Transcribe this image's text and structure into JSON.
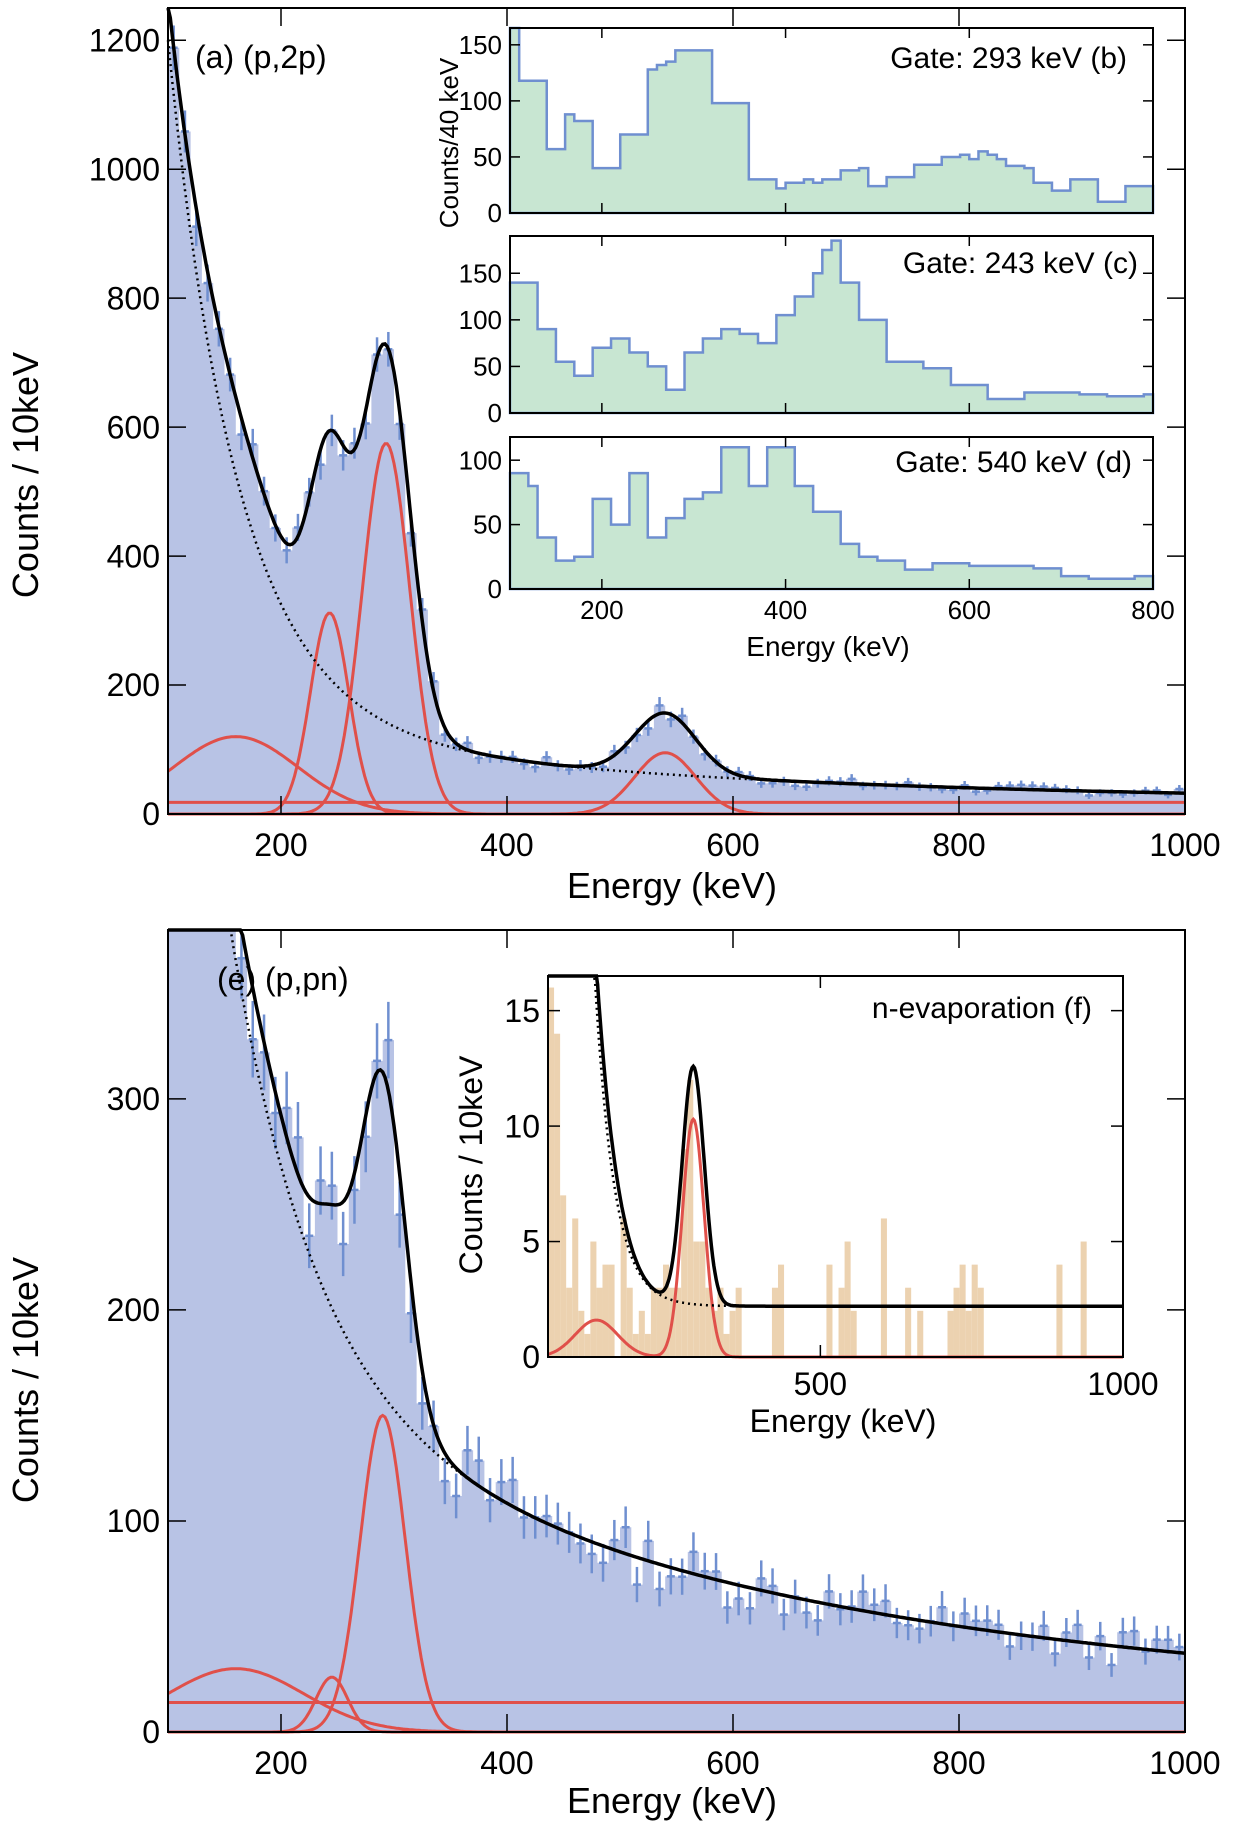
{
  "colors": {
    "hist_fill": "#b4c0e4",
    "hist_line": "#6f8fd0",
    "inset_fill": "#c8e6d2",
    "peak": "#e0504a",
    "total": "#000000",
    "evap_fill": "#ecd2b0"
  },
  "chart_data": [
    {
      "id": "a",
      "type": "histogram-fit",
      "panel_label": "(a) (p,2p)",
      "xlabel": "Energy (keV)",
      "ylabel": "Counts / 10keV",
      "xlim": [
        100,
        1000
      ],
      "ylim": [
        0,
        1250
      ],
      "xticks": [
        200,
        400,
        600,
        800,
        1000
      ],
      "yticks": [
        0,
        200,
        400,
        600,
        800,
        1000,
        1200
      ],
      "background": {
        "a": 18,
        "b": 1060,
        "tau": 62,
        "c": 122,
        "lambda": 420
      },
      "peaks": [
        {
          "center": 293,
          "height": 575,
          "sigma": 21
        },
        {
          "center": 243,
          "height": 312,
          "sigma": 17
        },
        {
          "center": 540,
          "height": 95,
          "sigma": 27
        },
        {
          "center": 160,
          "height": 120,
          "sigma": 55
        }
      ]
    },
    {
      "id": "b",
      "type": "histogram",
      "label": "Gate: 293 keV (b)",
      "ylabel": "Counts/40 keV",
      "xlim": [
        100,
        800
      ],
      "ylim": [
        0,
        165
      ],
      "yticks": [
        0,
        50,
        100,
        150
      ],
      "xticks": [
        200,
        400,
        600,
        800
      ],
      "bin_width": 10,
      "values": [
        165,
        118,
        118,
        118,
        57,
        57,
        88,
        82,
        82,
        40,
        40,
        40,
        70,
        70,
        70,
        128,
        132,
        135,
        145,
        145,
        145,
        145,
        98,
        98,
        98,
        98,
        30,
        30,
        30,
        22,
        27,
        27,
        30,
        27,
        30,
        30,
        38,
        38,
        40,
        24,
        24,
        32,
        32,
        32,
        43,
        43,
        43,
        50,
        50,
        52,
        48,
        55,
        52,
        48,
        42,
        42,
        40,
        27,
        27,
        20,
        20,
        30,
        30,
        30,
        10,
        10,
        10,
        24,
        24,
        24
      ]
    },
    {
      "id": "c",
      "type": "histogram",
      "label": "Gate: 243 keV (c)",
      "xlim": [
        100,
        800
      ],
      "ylim": [
        0,
        190
      ],
      "yticks": [
        0,
        50,
        100,
        150
      ],
      "xticks": [
        200,
        400,
        600,
        800
      ],
      "bin_width": 10,
      "values": [
        140,
        140,
        140,
        90,
        90,
        55,
        55,
        40,
        40,
        70,
        70,
        80,
        80,
        65,
        65,
        50,
        50,
        25,
        25,
        65,
        65,
        80,
        80,
        90,
        90,
        85,
        85,
        75,
        75,
        105,
        105,
        125,
        125,
        150,
        175,
        185,
        140,
        140,
        100,
        100,
        100,
        55,
        55,
        55,
        55,
        48,
        48,
        48,
        30,
        30,
        30,
        30,
        15,
        15,
        15,
        15,
        22,
        22,
        22,
        22,
        22,
        22,
        20,
        20,
        20,
        18,
        18,
        18,
        18,
        20
      ]
    },
    {
      "id": "d",
      "type": "histogram",
      "label": "Gate: 540 keV (d)",
      "xlim": [
        100,
        800
      ],
      "ylim": [
        0,
        118
      ],
      "yticks": [
        0,
        50,
        100
      ],
      "xticks": [
        200,
        400,
        600,
        800
      ],
      "bin_width": 10,
      "values": [
        90,
        90,
        80,
        40,
        40,
        22,
        22,
        25,
        25,
        70,
        70,
        50,
        50,
        90,
        90,
        40,
        40,
        55,
        55,
        70,
        70,
        75,
        75,
        110,
        110,
        110,
        80,
        80,
        110,
        110,
        110,
        80,
        80,
        60,
        60,
        60,
        35,
        35,
        25,
        25,
        22,
        22,
        22,
        15,
        15,
        15,
        20,
        20,
        20,
        20,
        18,
        18,
        18,
        18,
        18,
        18,
        18,
        16,
        16,
        16,
        10,
        10,
        10,
        8,
        8,
        8,
        8,
        8,
        10,
        10
      ]
    },
    {
      "id": "e",
      "type": "histogram-fit",
      "panel_label": "(e) (p,pn)",
      "xlabel": "Energy (keV)",
      "ylabel": "Counts / 10keV",
      "xlim": [
        100,
        1000
      ],
      "ylim": [
        0,
        380
      ],
      "xticks": [
        200,
        400,
        600,
        800,
        1000
      ],
      "yticks": [
        0,
        100,
        200,
        300
      ],
      "background": {
        "a": 14,
        "b": 460,
        "tau": 75,
        "c": 165,
        "lambda": 460
      },
      "peaks": [
        {
          "center": 290,
          "height": 150,
          "sigma": 20
        },
        {
          "center": 245,
          "height": 26,
          "sigma": 14
        },
        {
          "center": 160,
          "height": 30,
          "sigma": 60
        }
      ]
    },
    {
      "id": "f",
      "type": "histogram-fit",
      "label": "n-evaporation (f)",
      "xlabel": "Energy (keV)",
      "ylabel": "Counts / 10keV",
      "xlim": [
        50,
        1000
      ],
      "ylim": [
        0,
        16.5
      ],
      "xticks": [
        500,
        1000
      ],
      "yticks": [
        0,
        5,
        10,
        15
      ],
      "background": {
        "a": 2.2,
        "b": 160,
        "tau": 32
      },
      "peaks": [
        {
          "center": 290,
          "height": 10.3,
          "sigma": 18
        },
        {
          "center": 130,
          "height": 1.6,
          "sigma": 35
        }
      ],
      "bars": [
        [
          55,
          16
        ],
        [
          65,
          14
        ],
        [
          75,
          7
        ],
        [
          85,
          3
        ],
        [
          95,
          6
        ],
        [
          105,
          2
        ],
        [
          115,
          1
        ],
        [
          125,
          5
        ],
        [
          135,
          3
        ],
        [
          145,
          4
        ],
        [
          155,
          4
        ],
        [
          175,
          6
        ],
        [
          185,
          3
        ],
        [
          195,
          1
        ],
        [
          205,
          2
        ],
        [
          215,
          1
        ],
        [
          225,
          3
        ],
        [
          235,
          3
        ],
        [
          245,
          4
        ],
        [
          255,
          3
        ],
        [
          265,
          3
        ],
        [
          275,
          9
        ],
        [
          285,
          12
        ],
        [
          295,
          5
        ],
        [
          305,
          5
        ],
        [
          315,
          3
        ],
        [
          325,
          2
        ],
        [
          335,
          3
        ],
        [
          345,
          1
        ],
        [
          355,
          2
        ],
        [
          365,
          3
        ],
        [
          425,
          3
        ],
        [
          435,
          4
        ],
        [
          515,
          4
        ],
        [
          535,
          3
        ],
        [
          545,
          5
        ],
        [
          555,
          2
        ],
        [
          605,
          6
        ],
        [
          645,
          3
        ],
        [
          665,
          2
        ],
        [
          715,
          2
        ],
        [
          725,
          3
        ],
        [
          735,
          4
        ],
        [
          745,
          2
        ],
        [
          755,
          4
        ],
        [
          765,
          3
        ],
        [
          895,
          4
        ],
        [
          935,
          5
        ]
      ]
    }
  ]
}
